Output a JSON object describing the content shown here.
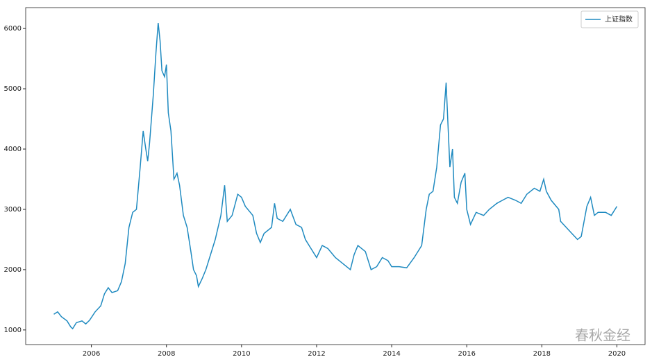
{
  "chart_data": {
    "type": "line",
    "x": [
      2005.0,
      2005.1,
      2005.2,
      2005.35,
      2005.45,
      2005.5,
      2005.6,
      2005.75,
      2005.85,
      2005.95,
      2006.1,
      2006.25,
      2006.35,
      2006.45,
      2006.55,
      2006.7,
      2006.8,
      2006.9,
      2007.0,
      2007.1,
      2007.2,
      2007.3,
      2007.38,
      2007.45,
      2007.5,
      2007.55,
      2007.65,
      2007.72,
      2007.78,
      2007.83,
      2007.88,
      2007.95,
      2008.0,
      2008.05,
      2008.12,
      2008.2,
      2008.28,
      2008.35,
      2008.45,
      2008.55,
      2008.65,
      2008.72,
      2008.8,
      2008.85,
      2008.95,
      2009.05,
      2009.15,
      2009.3,
      2009.45,
      2009.55,
      2009.62,
      2009.75,
      2009.9,
      2010.0,
      2010.1,
      2010.3,
      2010.4,
      2010.5,
      2010.6,
      2010.8,
      2010.88,
      2010.95,
      2011.1,
      2011.3,
      2011.45,
      2011.6,
      2011.7,
      2011.85,
      2012.0,
      2012.15,
      2012.3,
      2012.5,
      2012.7,
      2012.9,
      2013.0,
      2013.1,
      2013.3,
      2013.45,
      2013.6,
      2013.75,
      2013.9,
      2014.0,
      2014.2,
      2014.4,
      2014.6,
      2014.8,
      2014.92,
      2015.0,
      2015.1,
      2015.2,
      2015.3,
      2015.38,
      2015.45,
      2015.5,
      2015.55,
      2015.62,
      2015.67,
      2015.75,
      2015.85,
      2015.95,
      2016.0,
      2016.1,
      2016.25,
      2016.45,
      2016.6,
      2016.8,
      2016.95,
      2017.1,
      2017.3,
      2017.45,
      2017.6,
      2017.8,
      2017.95,
      2018.05,
      2018.12,
      2018.25,
      2018.45,
      2018.5,
      2018.65,
      2018.8,
      2018.95,
      2019.05,
      2019.2,
      2019.3,
      2019.4,
      2019.5,
      2019.7,
      2019.85,
      2020.0
    ],
    "series": [
      {
        "name": "上证指数",
        "color": "#1f8ac0",
        "values": [
          1260,
          1300,
          1220,
          1150,
          1050,
          1020,
          1120,
          1150,
          1100,
          1160,
          1300,
          1400,
          1600,
          1700,
          1620,
          1650,
          1800,
          2100,
          2700,
          2950,
          3000,
          3700,
          4300,
          4000,
          3800,
          4100,
          4900,
          5600,
          6092,
          5800,
          5300,
          5200,
          5400,
          4600,
          4300,
          3500,
          3600,
          3400,
          2900,
          2700,
          2300,
          2000,
          1900,
          1720,
          1850,
          2000,
          2200,
          2500,
          2900,
          3400,
          2800,
          2900,
          3250,
          3200,
          3050,
          2900,
          2600,
          2450,
          2600,
          2700,
          3100,
          2850,
          2800,
          3000,
          2750,
          2700,
          2500,
          2350,
          2200,
          2400,
          2350,
          2200,
          2100,
          2000,
          2250,
          2400,
          2300,
          2000,
          2050,
          2200,
          2150,
          2050,
          2050,
          2030,
          2200,
          2400,
          3000,
          3250,
          3300,
          3700,
          4400,
          4500,
          5100,
          4400,
          3700,
          4000,
          3200,
          3100,
          3450,
          3600,
          3000,
          2750,
          2950,
          2900,
          3000,
          3100,
          3150,
          3200,
          3150,
          3100,
          3250,
          3350,
          3300,
          3500,
          3300,
          3150,
          3000,
          2800,
          2700,
          2600,
          2500,
          2550,
          3050,
          3200,
          2900,
          2950,
          2950,
          2900,
          3050
        ]
      }
    ],
    "xlim": [
      2004.25,
      2020.75
    ],
    "ylim": [
      757,
      6346
    ],
    "xticks": [
      2006,
      2008,
      2010,
      2012,
      2014,
      2016,
      2018,
      2020
    ],
    "yticks": [
      1000,
      2000,
      3000,
      4000,
      5000,
      6000
    ],
    "legend": "upper right",
    "watermark": "春秋金经"
  }
}
